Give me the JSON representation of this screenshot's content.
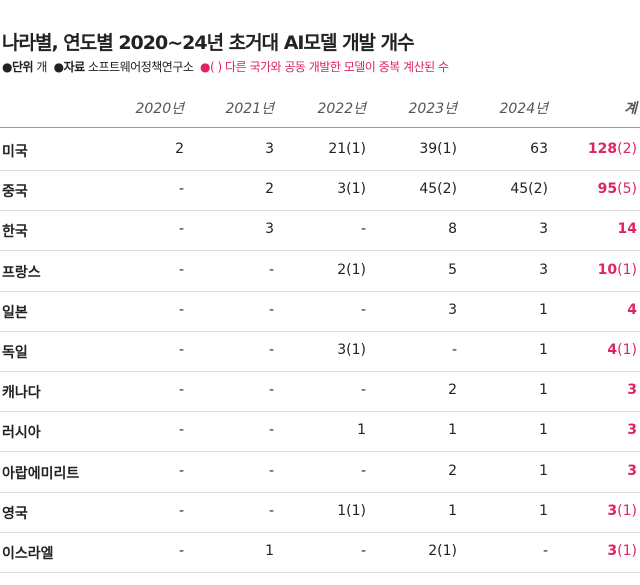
{
  "header": {
    "title": "나라별, 연도별 2020~24년 초거대 AI모델 개발 개수",
    "notes": {
      "unit_label": "단위",
      "unit": "개",
      "source_label": "자료",
      "source": "소프트웨어정책연구소",
      "note_symbol": "( )",
      "note": "다른 국가와 공동 개발한 모델이 중복 계산된 수"
    }
  },
  "table": {
    "columns": [
      "2020년",
      "2021년",
      "2022년",
      "2023년",
      "2024년"
    ],
    "total_column": "계",
    "rows": [
      {
        "country": "미국",
        "values": [
          "2",
          "3",
          "21(1)",
          "39(1)",
          "63"
        ],
        "total": "128",
        "total_dup": "(2)"
      },
      {
        "country": "중국",
        "values": [
          "-",
          "2",
          "3(1)",
          "45(2)",
          "45(2)"
        ],
        "total": "95",
        "total_dup": "(5)"
      },
      {
        "country": "한국",
        "values": [
          "-",
          "3",
          "-",
          "8",
          "3"
        ],
        "total": "14"
      },
      {
        "country": "프랑스",
        "values": [
          "-",
          "-",
          "2(1)",
          "5",
          "3"
        ],
        "total": "10",
        "total_dup": "(1)"
      },
      {
        "country": "일본",
        "values": [
          "-",
          "-",
          "-",
          "3",
          "1"
        ],
        "total": "4"
      },
      {
        "country": "독일",
        "values": [
          "-",
          "-",
          "3(1)",
          "-",
          "1"
        ],
        "total": "4",
        "total_dup": "(1)"
      },
      {
        "country": "캐나다",
        "values": [
          "-",
          "-",
          "-",
          "2",
          "1"
        ],
        "total": "3"
      },
      {
        "country": "러시아",
        "values": [
          "-",
          "-",
          "1",
          "1",
          "1"
        ],
        "total": "3"
      },
      {
        "country": "아랍에미리트",
        "values": [
          "-",
          "-",
          "-",
          "2",
          "1"
        ],
        "total": "3"
      },
      {
        "country": "영국",
        "values": [
          "-",
          "-",
          "1(1)",
          "1",
          "1"
        ],
        "total": "3",
        "total_dup": "(1)"
      },
      {
        "country": "이스라엘",
        "values": [
          "-",
          "1",
          "-",
          "2(1)",
          "-"
        ],
        "total": "3",
        "total_dup": "(1)"
      }
    ]
  }
}
